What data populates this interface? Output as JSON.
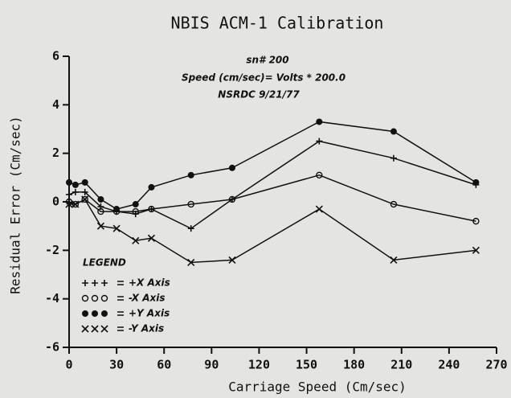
{
  "chart_data": {
    "type": "line",
    "title": "NBIS ACM-1 Calibration",
    "x_label": "Carriage Speed (Cm/sec)",
    "y_label": "Residual Error (Cm/sec)",
    "annotations": [
      "sn# 200",
      "Speed (cm/sec)= Volts * 200.0",
      "NSRDC 9/21/77"
    ],
    "legend_title": "LEGEND",
    "legend_position": "lower left",
    "x": [
      0,
      4,
      10,
      20,
      30,
      42,
      52,
      77,
      103,
      158,
      205,
      257
    ],
    "series": [
      {
        "name": "+X Axis",
        "color": "#111111",
        "marker": "plus",
        "values": [
          0.3,
          0.4,
          0.4,
          -0.2,
          -0.4,
          -0.5,
          -0.3,
          -1.1,
          0.1,
          2.5,
          1.8,
          0.7
        ]
      },
      {
        "name": "-X Axis",
        "color": "#111111",
        "marker": "circle",
        "values": [
          0.0,
          -0.1,
          0.1,
          -0.4,
          -0.4,
          -0.4,
          -0.3,
          -0.1,
          0.1,
          1.1,
          -0.1,
          -0.8
        ]
      },
      {
        "name": "+Y Axis",
        "color": "#111111",
        "marker": "dot",
        "values": [
          0.8,
          0.7,
          0.8,
          0.1,
          -0.3,
          -0.1,
          0.6,
          1.1,
          1.4,
          3.3,
          2.9,
          0.8
        ]
      },
      {
        "name": "-Y Axis",
        "color": "#111111",
        "marker": "cross",
        "values": [
          -0.1,
          -0.1,
          0.1,
          -1.0,
          -1.1,
          -1.6,
          -1.5,
          -2.5,
          -2.4,
          -0.3,
          -2.4,
          -2.0
        ]
      }
    ],
    "xlim": [
      0,
      270
    ],
    "xticks": [
      0,
      30,
      60,
      90,
      120,
      150,
      180,
      210,
      240,
      270
    ],
    "ylim": [
      -6,
      6
    ],
    "yticks": [
      -6,
      -4,
      -2,
      0,
      2,
      4,
      6
    ],
    "grid": false
  }
}
